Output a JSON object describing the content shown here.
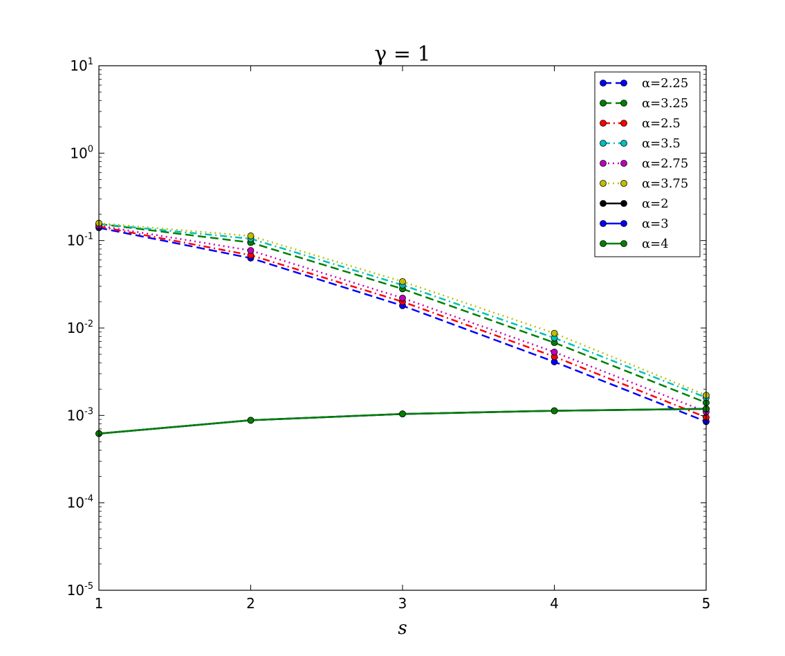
{
  "chart_data": {
    "type": "line",
    "title": "γ = 1",
    "xlabel": "s",
    "ylabel": "",
    "yscale": "log",
    "x": [
      1,
      2,
      3,
      4,
      5
    ],
    "xlim": [
      1,
      5
    ],
    "ylim": [
      1e-05,
      10
    ],
    "xticks": [
      "1",
      "2",
      "3",
      "4",
      "5"
    ],
    "yticks": [
      {
        "value": 10,
        "base": "10",
        "exp": "1"
      },
      {
        "value": 1,
        "base": "10",
        "exp": "0"
      },
      {
        "value": 0.1,
        "base": "10",
        "exp": "-1"
      },
      {
        "value": 0.01,
        "base": "10",
        "exp": "-2"
      },
      {
        "value": 0.001,
        "base": "10",
        "exp": "-3"
      },
      {
        "value": 0.0001,
        "base": "10",
        "exp": "-4"
      },
      {
        "value": 1e-05,
        "base": "10",
        "exp": "-5"
      }
    ],
    "grid": false,
    "legend_position": "top-right",
    "series": [
      {
        "name": "α=2.25",
        "color": "#0000ff",
        "dash": "dashed",
        "values": [
          0.14,
          0.063,
          0.018,
          0.0041,
          0.00085
        ]
      },
      {
        "name": "α=3.25",
        "color": "#008000",
        "dash": "dashed",
        "values": [
          0.155,
          0.095,
          0.028,
          0.0068,
          0.0014
        ]
      },
      {
        "name": "α=2.5",
        "color": "#ff0000",
        "dash": "dashdot",
        "values": [
          0.145,
          0.068,
          0.02,
          0.0047,
          0.00095
        ]
      },
      {
        "name": "α=3.5",
        "color": "#00bfbf",
        "dash": "dashdot",
        "values": [
          0.155,
          0.105,
          0.031,
          0.0077,
          0.0016
        ]
      },
      {
        "name": "α=2.75",
        "color": "#bf00bf",
        "dash": "dotted",
        "values": [
          0.148,
          0.077,
          0.022,
          0.0053,
          0.0011
        ]
      },
      {
        "name": "α=3.75",
        "color": "#bfbf00",
        "dash": "dotted",
        "values": [
          0.158,
          0.113,
          0.034,
          0.0087,
          0.0017
        ]
      },
      {
        "name": "α=2",
        "color": "#000000",
        "dash": "solid",
        "values": [
          0.00062,
          0.00088,
          0.00104,
          0.00113,
          0.00119
        ]
      },
      {
        "name": "α=3",
        "color": "#0000ff",
        "dash": "solid",
        "values": [
          0.00062,
          0.00088,
          0.00104,
          0.00113,
          0.00119
        ]
      },
      {
        "name": "α=4",
        "color": "#008000",
        "dash": "solid",
        "values": [
          0.00062,
          0.00088,
          0.00104,
          0.00113,
          0.00119
        ]
      }
    ]
  }
}
